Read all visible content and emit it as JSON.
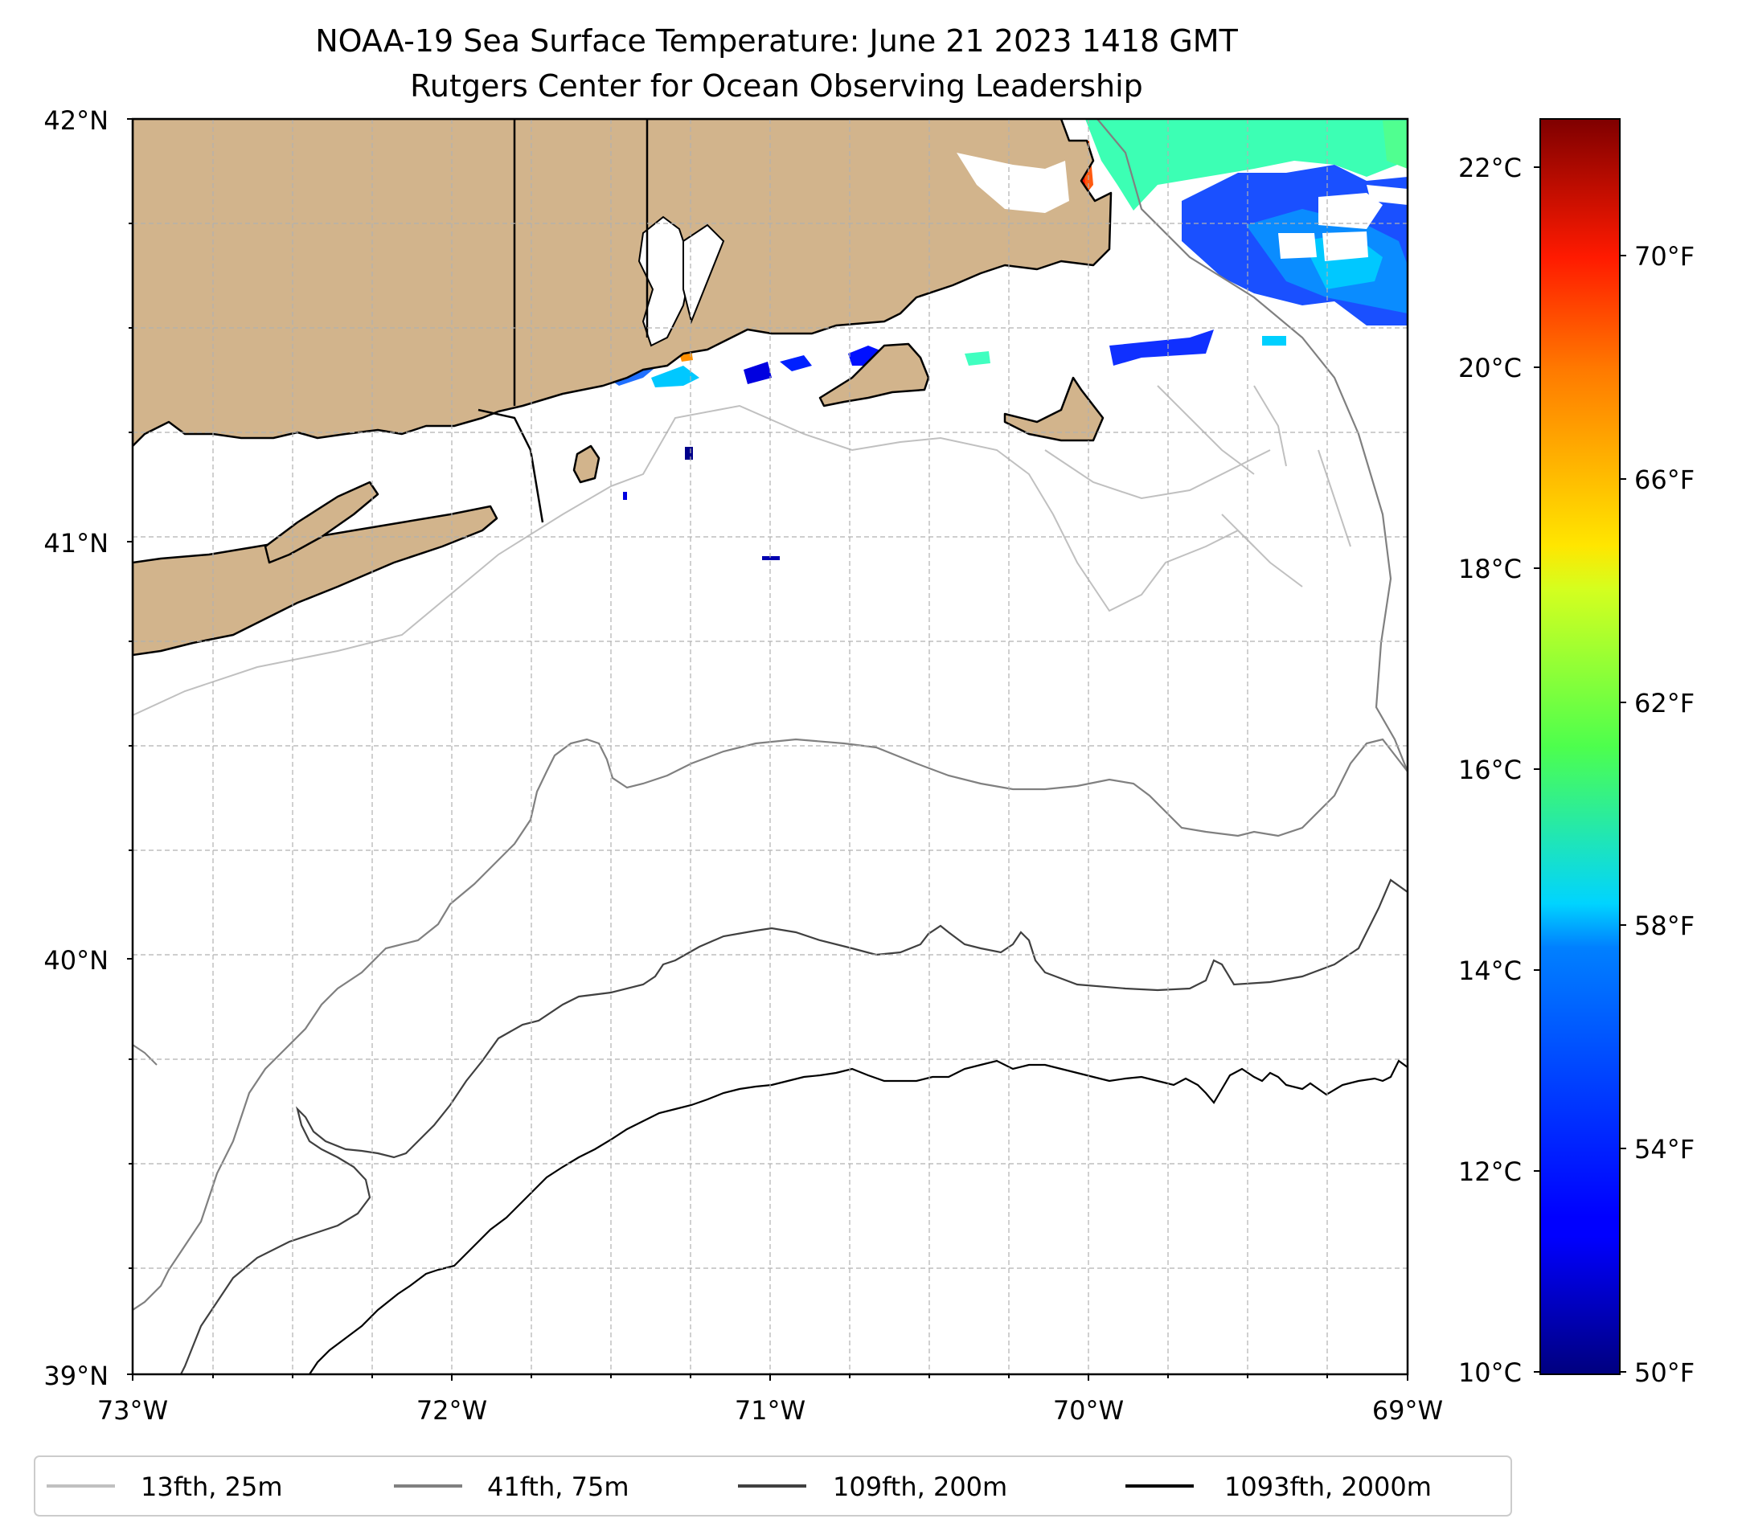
{
  "title": {
    "line1": "NOAA-19 Sea Surface Temperature: June 21 2023 1418 GMT",
    "line2": "Rutgers Center for Ocean Observing Leadership"
  },
  "map": {
    "lon_range": [
      -73,
      -69
    ],
    "lat_range": [
      39,
      42
    ],
    "lat_ticks": [
      "42°N",
      "41°N",
      "40°N",
      "39°N"
    ],
    "lon_ticks": [
      "73°W",
      "72°W",
      "71°W",
      "70°W",
      "69°W"
    ]
  },
  "colorbar": {
    "celsius_ticks": [
      "22°C",
      "20°C",
      "18°C",
      "16°C",
      "14°C",
      "12°C",
      "10°C"
    ],
    "fahrenheit_ticks": [
      "70°F",
      "66°F",
      "62°F",
      "58°F",
      "54°F",
      "50°F"
    ],
    "range_c": [
      10,
      22.5
    ]
  },
  "legend": {
    "items": [
      {
        "label": "13fth, 25m",
        "color": "#c0c0c0"
      },
      {
        "label": "41fth, 75m",
        "color": "#808080"
      },
      {
        "label": "109fth, 200m",
        "color": "#404040"
      },
      {
        "label": "1093fth, 2000m",
        "color": "#000000"
      }
    ]
  },
  "colors": {
    "land": "#d2b48c",
    "coast": "#000000",
    "grid": "#b0b0b0"
  }
}
